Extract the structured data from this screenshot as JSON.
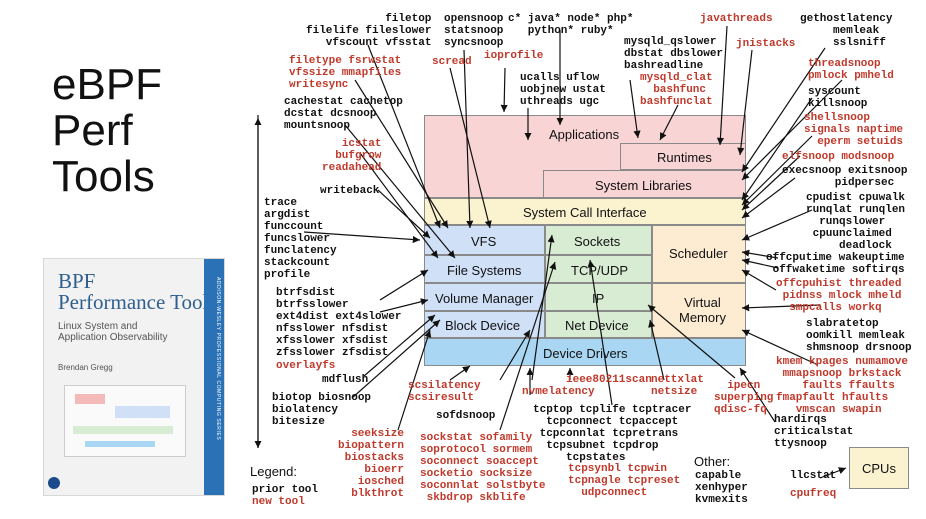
{
  "title": "eBPF\nPerf\nTools",
  "book": {
    "title": "BPF\nPerformance Tools",
    "subtitle": "Linux System and\nApplication Observability",
    "author": "Brendan Gregg",
    "spine": "ADDISON-WESLEY PROFESSIONAL COMPUTING SERIES"
  },
  "layers": {
    "applications": "Applications",
    "runtimes": "Runtimes",
    "system_libraries": "System Libraries",
    "syscall": "System Call Interface",
    "vfs": "VFS",
    "sockets": "Sockets",
    "scheduler": "Scheduler",
    "file_systems": "File Systems",
    "tcp_udp": "TCP/UDP",
    "volume_manager": "Volume Manager",
    "ip": "IP",
    "virtual_memory": "Virtual\nMemory",
    "block_device": "Block Device",
    "net_device": "Net Device",
    "device_drivers": "Device Drivers",
    "cpus": "CPUs"
  },
  "tools": {
    "filetop": "filetop\nfilelife fileslower\nvfscount vfsstat",
    "opensnoop": "opensnoop\nstatsnoop\nsyncsnoop",
    "langs": "c* java* node* php*\n   python* ruby*",
    "javathreads": "javathreads",
    "gethostlatency": "gethostlatency\n     memleak\n     sslsniff",
    "filetype": "filetype fsrwstat\nvfssize mmapfiles\nwritesync",
    "scread": "scread",
    "ioprofile": "ioprofile",
    "mysqld_qslower": "mysqld_qslower\ndbstat dbslower\nbashreadline",
    "jnistacks": "jnistacks",
    "mysqld_clat": "mysqld_clat\n  bashfunc\nbashfunclat",
    "threadsnoop": "threadsnoop\npmlock pmheld",
    "ucalls": "ucalls uflow\nuobjnew ustat\nuthreads ugc",
    "syscount": "syscount\nkillsnoop",
    "cachestat": "cachestat cachetop\ndcstat dcsnoop\nmountsnoop",
    "shellsnoop": "shellsnoop\nsignals naptime\n  eperm setuids",
    "icstat": "icstat\nbufgrow\nreadahead",
    "elfsnoop": "elfsnoop modsnoop",
    "execsnoop": "execsnoop exitsnoop\n        pidpersec",
    "writeback": "writeback",
    "cpudist": "cpudist cpuwalk\nrunqlat runqlen\n  runqslower\n cpuunclaimed\n     deadlock",
    "trace": "trace\nargdist\nfunccount\nfuncslower\nfunclatency\nstackcount\nprofile",
    "offcputime": "offcputime wakeuptime\n offwaketime softirqs",
    "offcpuhist": "offcpuhist threaded\n pidnss mlock mheld\n  smpcalls workq",
    "btrfsdist": "btrfsdist\nbtrfsslower\next4dist ext4slower\nnfsslower nfsdist\nxfsslower xfsdist\nzfsslower zfsdist",
    "overlayfs": "overlayfs",
    "slabratetop": "slabratetop\noomkill memleak\nshmsnoop drsnoop",
    "mdflush": "mdflush",
    "kmem": "kmem kpages numamove\n mmapsnoop brkstack\n    faults ffaults\nfmapfault hfaults\n   vmscan swapin",
    "biotop": "biotop biosnoop\nbiolatency\nbitesize",
    "scsilatency": "scsilatency\nscsiresult",
    "ieee": "ieee80211scan",
    "nettxlat": "nettxlat\nnetsize",
    "nvmelatency": "nvmelatency",
    "ipecn": "  ipecn\nsuperping\nqdisc-fq",
    "sofdsnoop": "sofdsnoop",
    "tcptop": "tcptop tcplife tcptracer\n  tcpconnect tcpaccept\n tcpconnlat tcpretrans\n  tcpsubnet tcpdrop\n     tcpstates",
    "hardirqs": "hardirqs\ncriticalstat\nttysnoop",
    "seeksize": "seeksize\nbiopattern\nbiostacks\nbioerr\niosched\nblkthrot",
    "sockstat": "sockstat sofamily\nsoprotocol sormem\nsoconnect soaccept\nsocketio socksize\nsoconnlat solstbyte\n skbdrop skblife",
    "tcpsynbl": "tcpsynbl tcpwin\ntcpnagle tcpreset\n  udpconnect",
    "capable": "capable\nxenhyper\nkvmexits",
    "llcstat": "llcstat",
    "cpufreq": "cpufreq"
  },
  "legend": {
    "title": "Legend:",
    "prior": "prior tool",
    "new": "new tool",
    "other": "Other:"
  },
  "colors": {
    "applications": "#f9d4d4",
    "syscall": "#fbf3cf",
    "vfs_col": "#cfe0f7",
    "net_col": "#d8ecd3",
    "sched_col": "#fdebd2",
    "drivers": "#a9d6f3",
    "cpus": "#fbf3cf",
    "new_tool": "#c0392b"
  }
}
